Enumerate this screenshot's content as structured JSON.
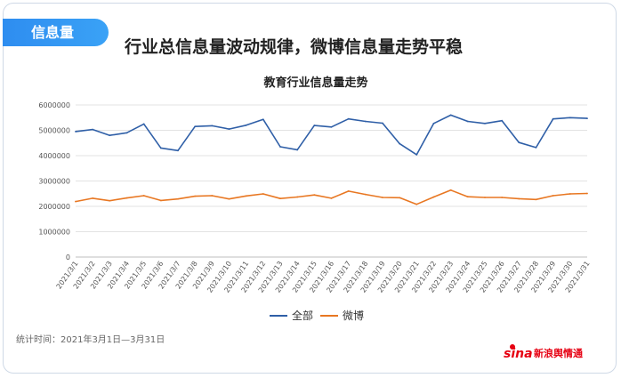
{
  "badge": "信息量",
  "headline": "行业总信息量波动规律，微博信息量走势平稳",
  "footnote": "统计时间：2021年3月1日—3月31日",
  "brand": {
    "mark": "sina",
    "text": "新浪舆情通"
  },
  "chart_data": {
    "type": "line",
    "title": "教育行业信息量走势",
    "xlabel": "",
    "ylabel": "",
    "ylim": [
      0,
      6000000
    ],
    "yticks": [
      "0",
      "1000000",
      "2000000",
      "3000000",
      "4000000",
      "5000000",
      "6000000"
    ],
    "grid": true,
    "legend_position": "bottom",
    "categories": [
      "2021/3/1",
      "2021/3/2",
      "2021/3/3",
      "2021/3/4",
      "2021/3/5",
      "2021/3/6",
      "2021/3/7",
      "2021/3/8",
      "2021/3/9",
      "2021/3/10",
      "2021/3/11",
      "2021/3/12",
      "2021/3/13",
      "2021/3/14",
      "2021/3/15",
      "2021/3/16",
      "2021/3/17",
      "2021/3/18",
      "2021/3/19",
      "2021/3/20",
      "2021/3/21",
      "2021/3/22",
      "2021/3/23",
      "2021/3/24",
      "2021/3/25",
      "2021/3/26",
      "2021/3/27",
      "2021/3/28",
      "2021/3/29",
      "2021/3/30",
      "2021/3/31"
    ],
    "series": [
      {
        "name": "全部",
        "color": "#2f5fa7",
        "values": [
          4950000,
          5030000,
          4800000,
          4900000,
          5250000,
          4300000,
          4200000,
          5150000,
          5180000,
          5050000,
          5200000,
          5430000,
          4350000,
          4230000,
          5190000,
          5130000,
          5450000,
          5350000,
          5280000,
          4470000,
          4040000,
          5270000,
          5600000,
          5350000,
          5270000,
          5380000,
          4520000,
          4320000,
          5450000,
          5500000,
          5470000
        ]
      },
      {
        "name": "微博",
        "color": "#e87722",
        "values": [
          2190000,
          2320000,
          2220000,
          2330000,
          2420000,
          2230000,
          2290000,
          2400000,
          2420000,
          2290000,
          2410000,
          2490000,
          2310000,
          2370000,
          2450000,
          2320000,
          2600000,
          2470000,
          2350000,
          2340000,
          2080000,
          2370000,
          2640000,
          2380000,
          2350000,
          2350000,
          2300000,
          2270000,
          2420000,
          2490000,
          2510000
        ]
      }
    ]
  }
}
